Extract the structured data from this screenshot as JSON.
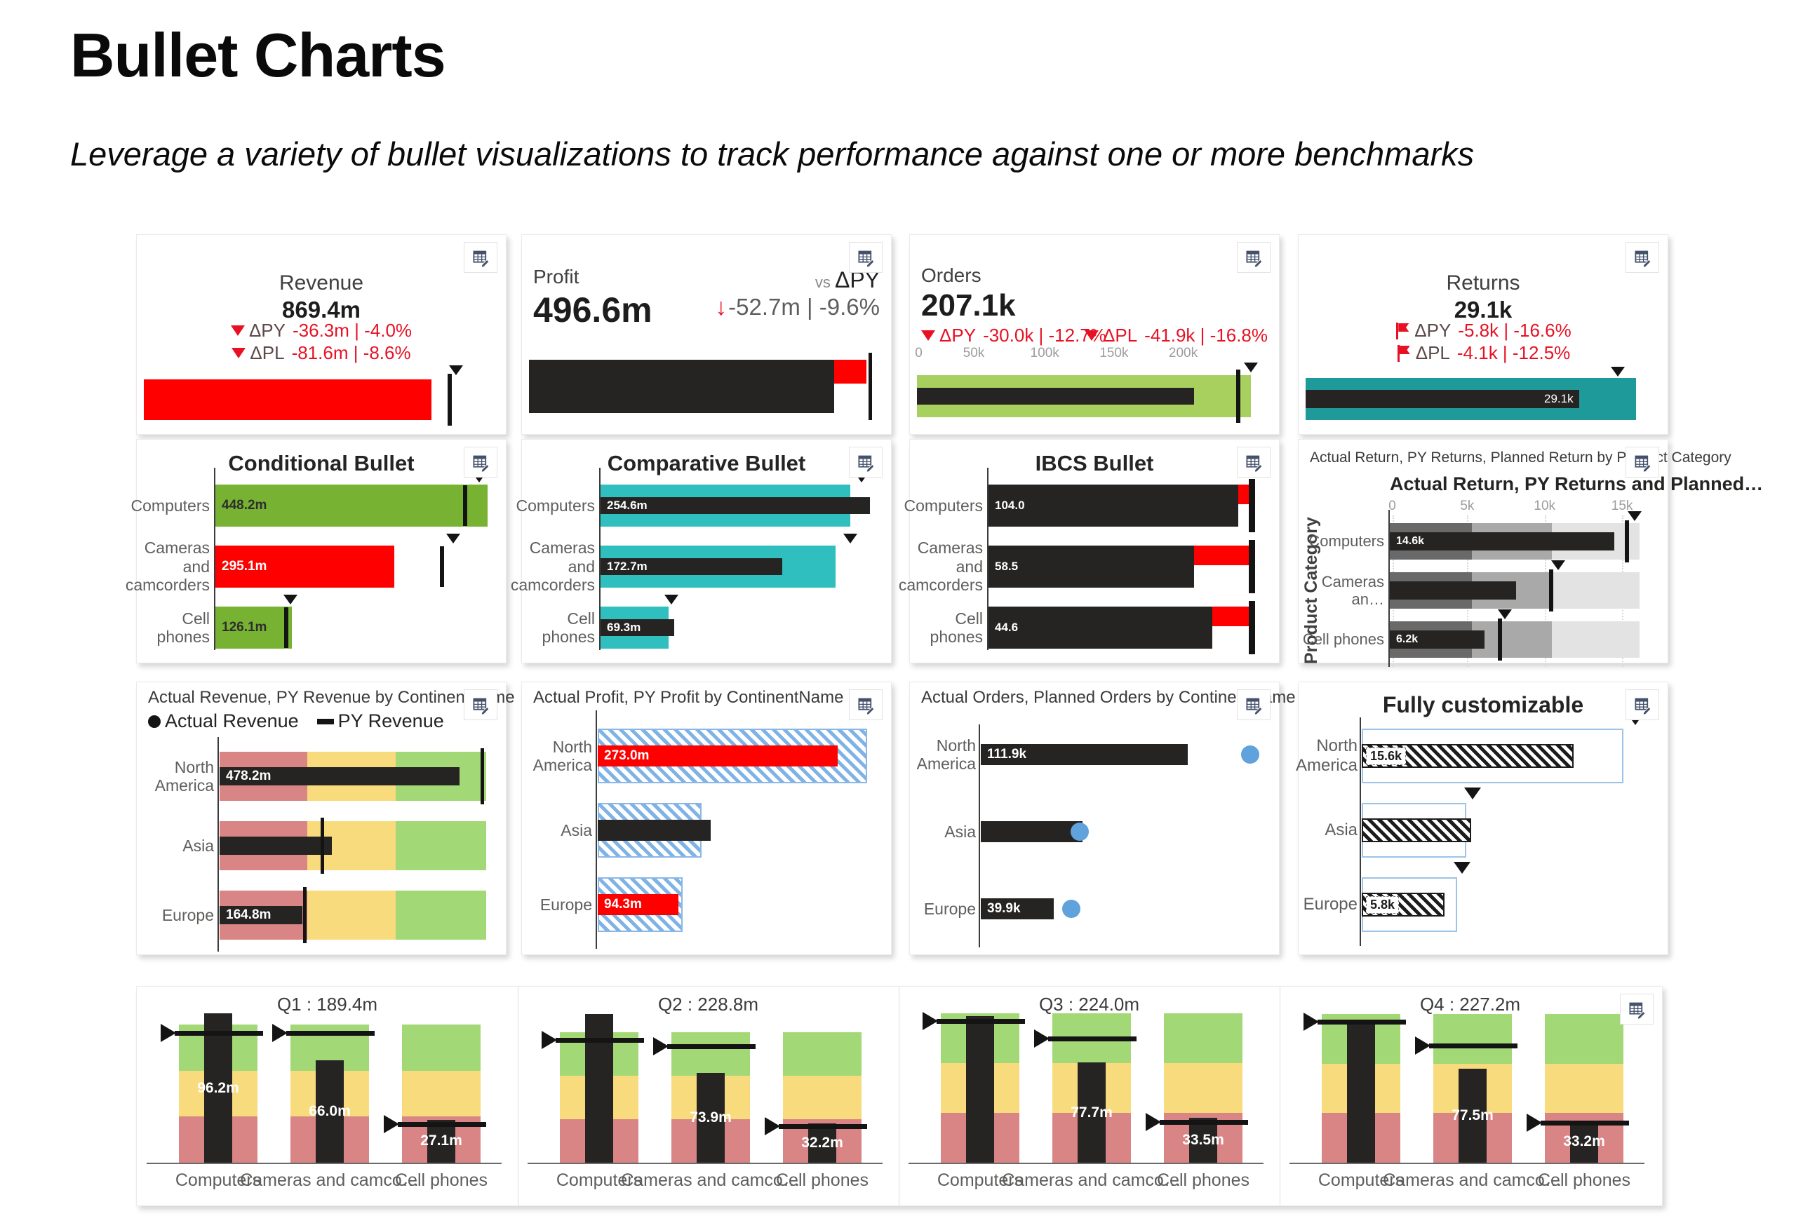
{
  "page": {
    "title": "Bullet Charts",
    "subtitle": "Leverage a variety of bullet visualizations to track performance against one or more benchmarks"
  },
  "colors": {
    "bar_black": "#252423",
    "red_bar": "#fe0000",
    "delta_red": "#e81123",
    "green_bar": "#77b233",
    "orders_green": "#a7d05f",
    "teal_dark": "#1f9a9a",
    "teal": "#2fbfbf",
    "band_red": "#d98585",
    "band_yellow": "#f8db7d",
    "band_green": "#a2d876",
    "grey_dark": "#696969",
    "grey_mid": "#a9a9a9",
    "grey_light": "#e3e3e3",
    "hatch_blue": "#7fb2e5",
    "outline_blue": "#9dc3e6",
    "dot_blue": "#5fa2dc",
    "label_grey": "#605e5c"
  },
  "kpis": {
    "revenue": {
      "title": "Revenue",
      "value": "869.4m",
      "deltas": [
        {
          "marker": "triangle-down",
          "label": "ΔPY",
          "value": "-36.3m | -4.0%"
        },
        {
          "marker": "triangle-down",
          "label": "ΔPL",
          "value": "-81.6m | -8.6%"
        }
      ],
      "bullet": {
        "bar_pct": 81,
        "target_pct": 85.5,
        "marker_pct": 88
      }
    },
    "profit": {
      "title": "Profit",
      "value": "496.6m",
      "vs_prefix": "vs ",
      "vs_label": "ΔPY",
      "arrow": "down-arrow",
      "vs_value": "-52.7m | -9.6%",
      "bullet": {
        "bar_pct": 86,
        "gap_from": 86,
        "gap_to": 95,
        "target_pct": 95.6
      }
    },
    "orders": {
      "title": "Orders",
      "value": "207.1k",
      "delta_py": {
        "label": "ΔPY",
        "value": "-30.0k | -12.7%"
      },
      "delta_pl": {
        "label": "ΔPL",
        "value": "-41.9k | -16.8%"
      },
      "ticks": [
        {
          "label": "0",
          "pct": 0.5
        },
        {
          "label": "50k",
          "pct": 16
        },
        {
          "label": "100k",
          "pct": 36
        },
        {
          "label": "150k",
          "pct": 55.5
        },
        {
          "label": "200k",
          "pct": 75
        }
      ],
      "bullet": {
        "bg_pct": 94,
        "bar_pct": 78,
        "target_pct": 90,
        "marker_pct": 94
      }
    },
    "returns": {
      "title": "Returns",
      "value": "29.1k",
      "deltas": [
        {
          "marker": "flag",
          "label": "ΔPY",
          "value": "-5.8k | -16.6%"
        },
        {
          "marker": "flag",
          "label": "ΔPL",
          "value": "-4.1k | -12.5%"
        }
      ],
      "bullet": {
        "bg_pct": 93,
        "bar_pct": 77,
        "bar_label": "29.1k",
        "marker_pct": 88
      }
    }
  },
  "conditional": {
    "title": "Conditional Bullet",
    "rows": [
      {
        "label": "Computers",
        "value": "448.2m",
        "color": "green",
        "text": "dark",
        "bar_pct": 96,
        "target_pct": 88,
        "marker_pct": 93
      },
      {
        "label": "Cameras and camcorders",
        "value": "295.1m",
        "color": "red",
        "text": "light",
        "bar_pct": 63,
        "target_pct": 80,
        "marker_pct": 84
      },
      {
        "label": "Cell phones",
        "value": "126.1m",
        "color": "green",
        "text": "dark",
        "bar_pct": 27,
        "target_pct": 25,
        "marker_pct": 26.5
      }
    ]
  },
  "comparative": {
    "title": "Comparative Bullet",
    "rows": [
      {
        "label": "Computers",
        "value": "254.6m",
        "bg_pct": 88,
        "bar_pct": 95,
        "marker_pct": 92
      },
      {
        "label": "Cameras and camcorders",
        "value": "172.7m",
        "bg_pct": 83,
        "bar_pct": 64,
        "marker_pct": 88
      },
      {
        "label": "Cell phones",
        "value": "69.3m",
        "bg_pct": 24,
        "bar_pct": 26,
        "marker_pct": 25
      }
    ]
  },
  "ibcs": {
    "title": "IBCS Bullet",
    "rows": [
      {
        "label": "Computers",
        "value": "104.0",
        "bar_pct": 88,
        "target_pct": 93
      },
      {
        "label": "Cameras and camcorders",
        "value": "58.5",
        "bar_pct": 72.5,
        "target_pct": 93
      },
      {
        "label": "Cell phones",
        "value": "44.6",
        "bar_pct": 79,
        "target_pct": 93
      }
    ]
  },
  "product_category": {
    "header": "Actual Return, PY Returns, Planned Return by Product Category",
    "chart_title": "Actual Return, PY Returns and Planned…",
    "y_axis_label": "Product Category",
    "ticks": [
      {
        "label": "0",
        "pct": 1
      },
      {
        "label": "5k",
        "pct": 31
      },
      {
        "label": "10k",
        "pct": 62
      },
      {
        "label": "15k",
        "pct": 93
      }
    ],
    "bands": [
      33,
      65,
      100
    ],
    "rows": [
      {
        "label": "Computers",
        "value": "14.6k",
        "bar_pct": 90,
        "target_pct": 95,
        "marker_pct": 98
      },
      {
        "label": "Cameras an…",
        "value": "",
        "bar_pct": 50.5,
        "target_pct": 64.5,
        "marker_pct": 67.5
      },
      {
        "label": "Cell phones",
        "value": "6.2k",
        "bar_pct": 38,
        "target_pct": 44,
        "marker_pct": 46
      }
    ]
  },
  "revenue_continent": {
    "header": "Actual Revenue, PY Revenue by ContinentName",
    "legend": [
      {
        "swatch": "dot",
        "label": "Actual Revenue"
      },
      {
        "swatch": "dash",
        "label": "PY Revenue"
      }
    ],
    "bands": [
      33,
      66,
      100
    ],
    "rows": [
      {
        "label": "North America",
        "value": "478.2m",
        "bar_pct": 90,
        "target_pct": 98.5
      },
      {
        "label": "Asia",
        "value": "",
        "bar_pct": 42,
        "target_pct": 38.5
      },
      {
        "label": "Europe",
        "value": "164.8m",
        "bar_pct": 31,
        "target_pct": 32
      }
    ]
  },
  "profit_continent": {
    "header": "Actual Profit, PY Profit by ContinentName",
    "rows": [
      {
        "label": "North America",
        "value": "273.0m",
        "color": "red",
        "hatch_pct": 100,
        "bar_pct": 89
      },
      {
        "label": "Asia",
        "value": "",
        "color": "black",
        "hatch_pct": 38.5,
        "bar_pct": 42
      },
      {
        "label": "Europe",
        "value": "94.3m",
        "color": "red",
        "hatch_pct": 31.5,
        "bar_pct": 30
      }
    ]
  },
  "orders_continent": {
    "header": "Actual Orders, Planned Orders by ContinentName",
    "rows": [
      {
        "label": "North America",
        "value": "111.9k",
        "bar_pct": 71,
        "dot_pct": 92.5
      },
      {
        "label": "Asia",
        "value": "",
        "bar_pct": 35,
        "dot_pct": 34
      },
      {
        "label": "Europe",
        "value": "39.9k",
        "bar_pct": 25,
        "dot_pct": 31
      }
    ]
  },
  "fully_custom": {
    "title": "Fully customizable",
    "rows": [
      {
        "label": "North America",
        "value": "15.6k",
        "box_pct": 87.5,
        "hatch_pct": 71,
        "marker_pct": 91.5
      },
      {
        "label": "Asia",
        "value": "",
        "box_pct": 35,
        "hatch_pct": 36.6,
        "marker_pct": 37
      },
      {
        "label": "Europe",
        "value": "5.8k",
        "box_pct": 32,
        "hatch_pct": 27.7,
        "marker_pct": 33.5
      }
    ]
  },
  "quarters": {
    "categories": [
      "Computers",
      "Cameras and camco…",
      "Cell phones"
    ],
    "sections": [
      {
        "title": "Q1 :  189.4m",
        "band_top": 54,
        "columns": [
          {
            "value": "96.2m",
            "bar_pct": 108,
            "target_pct": 94
          },
          {
            "value": "66.0m",
            "bar_pct": 74,
            "target_pct": 94
          },
          {
            "value": "27.1m",
            "bar_pct": 31,
            "target_pct": 28
          }
        ]
      },
      {
        "title": "Q2 :  228.8m",
        "band_top": 65,
        "columns": [
          {
            "value": "",
            "bar_pct": 114,
            "target_pct": 94
          },
          {
            "value": "73.9m",
            "bar_pct": 69,
            "target_pct": 89
          },
          {
            "value": "32.2m",
            "bar_pct": 30,
            "target_pct": 28
          }
        ]
      },
      {
        "title": "Q3 :  224.0m",
        "band_top": 38,
        "columns": [
          {
            "value": "",
            "bar_pct": 98,
            "target_pct": 95
          },
          {
            "value": "77.7m",
            "bar_pct": 67,
            "target_pct": 83
          },
          {
            "value": "33.5m",
            "bar_pct": 30,
            "target_pct": 27
          }
        ]
      },
      {
        "title": "Q4 :  227.2m",
        "band_top": 39,
        "columns": [
          {
            "value": "",
            "bar_pct": 96,
            "target_pct": 95
          },
          {
            "value": "77.5m",
            "bar_pct": 63,
            "target_pct": 79
          },
          {
            "value": "33.2m",
            "bar_pct": 28,
            "target_pct": 27
          }
        ]
      }
    ]
  },
  "chart_data": [
    {
      "type": "bar",
      "subtype": "bullet-kpi",
      "title": "Revenue",
      "value": "869.4m",
      "deltas": [
        {
          "name": "ΔPY",
          "value": "-36.3m",
          "pct": "-4.0%"
        },
        {
          "name": "ΔPL",
          "value": "-81.6m",
          "pct": "-8.6%"
        }
      ]
    },
    {
      "type": "bar",
      "subtype": "bullet-kpi",
      "title": "Profit",
      "value": "496.6m",
      "deltas": [
        {
          "name": "vs ΔPY",
          "value": "-52.7m",
          "pct": "-9.6%"
        }
      ]
    },
    {
      "type": "bar",
      "subtype": "bullet-kpi",
      "title": "Orders",
      "value": "207.1k",
      "xlim": [
        0,
        250000
      ],
      "tick_labels": [
        "0",
        "50k",
        "100k",
        "150k",
        "200k"
      ],
      "deltas": [
        {
          "name": "ΔPY",
          "value": "-30.0k",
          "pct": "-12.7%"
        },
        {
          "name": "ΔPL",
          "value": "-41.9k",
          "pct": "-16.8%"
        }
      ]
    },
    {
      "type": "bar",
      "subtype": "bullet-kpi",
      "title": "Returns",
      "value": "29.1k",
      "deltas": [
        {
          "name": "ΔPY",
          "value": "-5.8k",
          "pct": "-16.6%"
        },
        {
          "name": "ΔPL",
          "value": "-4.1k",
          "pct": "-12.5%"
        }
      ]
    },
    {
      "type": "bar",
      "title": "Conditional Bullet",
      "categories": [
        "Computers",
        "Cameras and camcorders",
        "Cell phones"
      ],
      "values": [
        448.2,
        295.1,
        126.1
      ],
      "unit": "m"
    },
    {
      "type": "bar",
      "title": "Comparative Bullet",
      "categories": [
        "Computers",
        "Cameras and camcorders",
        "Cell phones"
      ],
      "values": [
        254.6,
        172.7,
        69.3
      ],
      "unit": "m"
    },
    {
      "type": "bar",
      "title": "IBCS Bullet",
      "categories": [
        "Computers",
        "Cameras and camcorders",
        "Cell phones"
      ],
      "values": [
        104.0,
        58.5,
        44.6
      ]
    },
    {
      "type": "bar",
      "title": "Actual Return, PY Returns and Planned Return",
      "ylabel": "Product Category",
      "categories": [
        "Computers",
        "Cameras an…",
        "Cell phones"
      ],
      "values": [
        14600,
        null,
        6200
      ],
      "xlim": [
        0,
        16000
      ],
      "tick_labels": [
        "0",
        "5k",
        "10k",
        "15k"
      ]
    },
    {
      "type": "bar",
      "title": "Actual Revenue, PY Revenue by ContinentName",
      "legend": [
        "Actual Revenue",
        "PY Revenue"
      ],
      "categories": [
        "North America",
        "Asia",
        "Europe"
      ],
      "values": [
        478.2,
        null,
        164.8
      ],
      "unit": "m"
    },
    {
      "type": "bar",
      "title": "Actual Profit, PY Profit by ContinentName",
      "categories": [
        "North America",
        "Asia",
        "Europe"
      ],
      "values": [
        273.0,
        null,
        94.3
      ],
      "unit": "m"
    },
    {
      "type": "bar",
      "title": "Actual Orders, Planned Orders by ContinentName",
      "categories": [
        "North America",
        "Asia",
        "Europe"
      ],
      "values": [
        111.9,
        null,
        39.9
      ],
      "unit": "k"
    },
    {
      "type": "bar",
      "title": "Fully customizable",
      "categories": [
        "North America",
        "Asia",
        "Europe"
      ],
      "values": [
        15.6,
        null,
        5.8
      ],
      "unit": "k"
    },
    {
      "type": "bar",
      "subtype": "vertical-bullet-multiples",
      "categories": [
        "Computers",
        "Cameras and camco…",
        "Cell phones"
      ],
      "series": [
        {
          "name": "Q1",
          "total": "189.4m",
          "values": [
            "96.2m",
            "66.0m",
            "27.1m"
          ]
        },
        {
          "name": "Q2",
          "total": "228.8m",
          "values": [
            null,
            "73.9m",
            "32.2m"
          ]
        },
        {
          "name": "Q3",
          "total": "224.0m",
          "values": [
            null,
            "77.7m",
            "33.5m"
          ]
        },
        {
          "name": "Q4",
          "total": "227.2m",
          "values": [
            null,
            "77.5m",
            "33.2m"
          ]
        }
      ]
    }
  ]
}
